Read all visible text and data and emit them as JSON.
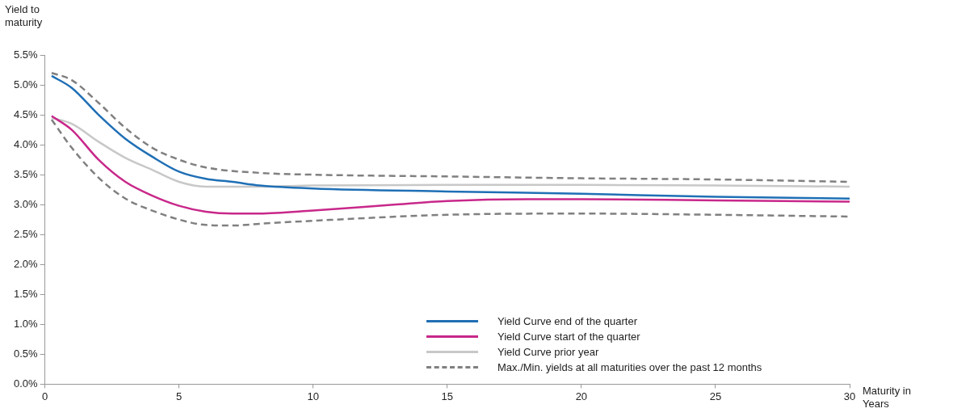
{
  "chart_data": {
    "type": "line",
    "ylabel": "Yield to maturity",
    "xlabel": "Maturity in Years",
    "xlim": [
      0,
      30
    ],
    "xticks": [
      0,
      5,
      10,
      15,
      20,
      25,
      30
    ],
    "ylim": [
      0,
      5.5
    ],
    "yticks": [
      {
        "value": 0,
        "label": "0.0%"
      },
      {
        "value": 0.5,
        "label": "0.5%"
      },
      {
        "value": 1,
        "label": "1.0%"
      },
      {
        "value": 1.5,
        "label": "1.5%"
      },
      {
        "value": 2,
        "label": "2.0%"
      },
      {
        "value": 2.5,
        "label": "2.5%"
      },
      {
        "value": 3,
        "label": "3.0%"
      },
      {
        "value": 3.5,
        "label": "3.5%"
      },
      {
        "value": 4,
        "label": "4.0%"
      },
      {
        "value": 4.5,
        "label": "4.5%"
      },
      {
        "value": 5,
        "label": "5.0%"
      },
      {
        "value": 5.5,
        "label": "5.5%"
      }
    ],
    "grid": false,
    "legend": "bottom right",
    "marker": "none",
    "series": [
      {
        "name": "Yield Curve end of the quarter",
        "color": "#1f6fb5",
        "x": [
          0.25,
          1,
          2,
          3,
          4,
          5,
          6,
          7,
          8,
          10,
          15,
          20,
          25,
          30
        ],
        "values": [
          5.15,
          4.95,
          4.5,
          4.1,
          3.8,
          3.55,
          3.43,
          3.38,
          3.32,
          3.27,
          3.22,
          3.18,
          3.13,
          3.1
        ]
      },
      {
        "name": "Yield Curve start of the quarter",
        "color": "#c8288a",
        "x": [
          0.25,
          1,
          2,
          3,
          4,
          5,
          6,
          7,
          8,
          10,
          13,
          15,
          18,
          20,
          25,
          30
        ],
        "values": [
          4.48,
          4.25,
          3.75,
          3.38,
          3.15,
          2.98,
          2.88,
          2.85,
          2.85,
          2.9,
          3.0,
          3.06,
          3.09,
          3.09,
          3.07,
          3.05
        ]
      },
      {
        "name": "Yield Curve prior year",
        "color": "#c8c8c8",
        "x": [
          0.25,
          1,
          2,
          3,
          4,
          5,
          6,
          8,
          10,
          15,
          20,
          25,
          30
        ],
        "values": [
          4.45,
          4.35,
          4.05,
          3.78,
          3.58,
          3.38,
          3.3,
          3.3,
          3.32,
          3.33,
          3.33,
          3.32,
          3.3
        ]
      },
      {
        "name": "Max./Min. yields at all maturities over the past 12 months",
        "color": "#808080",
        "line_style": "dashed",
        "x": [
          0.25,
          1,
          2,
          3,
          4,
          5,
          6,
          8,
          10,
          15,
          20,
          25,
          30
        ],
        "values": [
          5.2,
          5.08,
          4.7,
          4.28,
          3.95,
          3.75,
          3.62,
          3.53,
          3.5,
          3.47,
          3.44,
          3.42,
          3.38
        ]
      },
      {
        "color": "#808080",
        "line_style": "dashed",
        "x": [
          0.25,
          1,
          2,
          3,
          4,
          5,
          6,
          7,
          8,
          10,
          15,
          20,
          25,
          30
        ],
        "values": [
          4.42,
          3.95,
          3.45,
          3.1,
          2.9,
          2.75,
          2.66,
          2.65,
          2.68,
          2.73,
          2.83,
          2.85,
          2.83,
          2.8
        ]
      }
    ]
  }
}
